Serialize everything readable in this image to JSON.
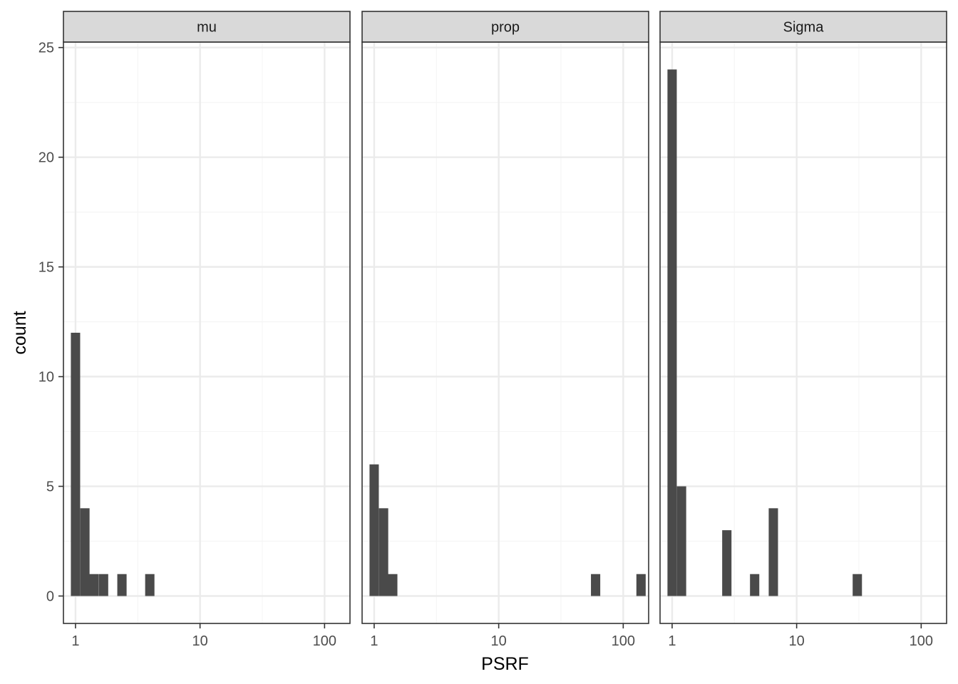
{
  "chart_data": {
    "type": "bar",
    "xlabel": "PSRF",
    "ylabel": "count",
    "x_scale": "log10",
    "xlim": [
      0.8,
      160
    ],
    "ylim": [
      -1.25,
      25.25
    ],
    "x_ticks": [
      1,
      10,
      100
    ],
    "x_tick_labels": [
      "1",
      "10",
      "100"
    ],
    "y_ticks": [
      0,
      5,
      10,
      15,
      20,
      25
    ],
    "y_tick_labels": [
      "0",
      "5",
      "10",
      "15",
      "20",
      "25"
    ],
    "grid": true,
    "bin_log_width": 0.0747,
    "panels": [
      {
        "name": "mu",
        "bars": [
          {
            "x": 1.0,
            "count": 12
          },
          {
            "x": 1.19,
            "count": 4
          },
          {
            "x": 1.41,
            "count": 1
          },
          {
            "x": 1.68,
            "count": 1
          },
          {
            "x": 2.36,
            "count": 1
          },
          {
            "x": 3.95,
            "count": 1
          }
        ]
      },
      {
        "name": "prop",
        "bars": [
          {
            "x": 1.0,
            "count": 6
          },
          {
            "x": 1.19,
            "count": 4
          },
          {
            "x": 1.41,
            "count": 1
          },
          {
            "x": 60.0,
            "count": 1
          },
          {
            "x": 139.0,
            "count": 1
          }
        ]
      },
      {
        "name": "Sigma",
        "bars": [
          {
            "x": 1.0,
            "count": 24
          },
          {
            "x": 1.19,
            "count": 5
          },
          {
            "x": 2.75,
            "count": 3
          },
          {
            "x": 4.6,
            "count": 1
          },
          {
            "x": 6.5,
            "count": 4
          },
          {
            "x": 30.7,
            "count": 1
          }
        ]
      }
    ],
    "colors": {
      "bar": "#4a4a4a",
      "strip_fill": "#d9d9d9",
      "panel_border": "#333333",
      "grid_major": "#ebebeb",
      "grid_minor": "#f5f5f5"
    }
  }
}
